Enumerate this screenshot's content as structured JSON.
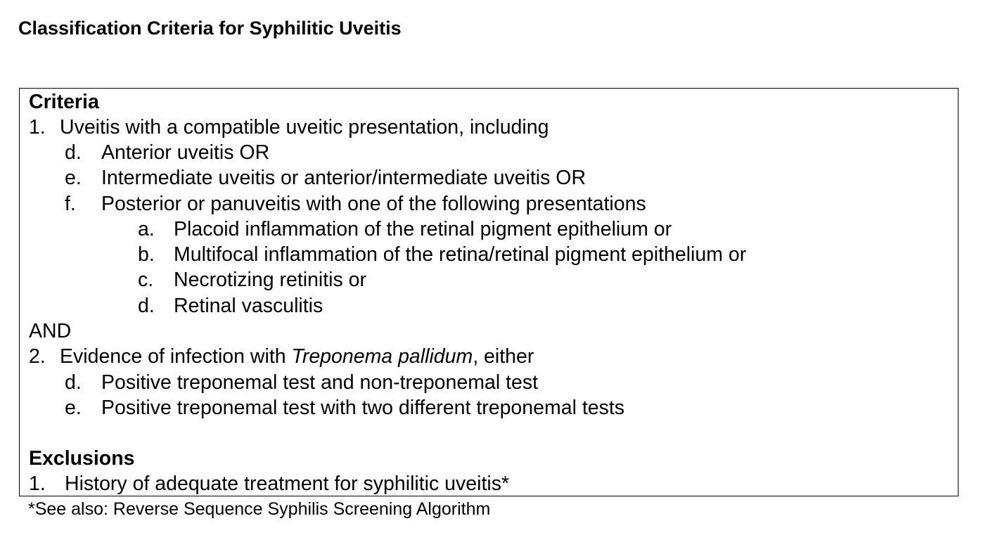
{
  "title": "Classification Criteria for Syphilitic Uveitis",
  "criteria": {
    "heading": "Criteria",
    "item1": {
      "num": "1.",
      "text": "Uveitis with a compatible uveitic presentation, including",
      "subs": [
        {
          "label": "d.",
          "text": "Anterior uveitis OR"
        },
        {
          "label": "e.",
          "text": "Intermediate uveitis or anterior/intermediate uveitis OR"
        },
        {
          "label": "f.",
          "text": "Posterior or panuveitis with one of the following presentations"
        }
      ],
      "subsubs": [
        {
          "label": "a.",
          "text": "Placoid inflammation of the retinal pigment epithelium or"
        },
        {
          "label": "b.",
          "text": "Multifocal inflammation of the retina/retinal pigment epithelium or"
        },
        {
          "label": "c.",
          "text": "Necrotizing retinitis or"
        },
        {
          "label": "d.",
          "text": "Retinal vasculitis"
        }
      ]
    },
    "connector": "AND",
    "item2": {
      "num": "2.",
      "text_before": "Evidence of infection with ",
      "text_italic": "Treponema pallidum",
      "text_after": ", either",
      "subs": [
        {
          "label": "d.",
          "text": "Positive treponemal test and non-treponemal test"
        },
        {
          "label": "e.",
          "text": "Positive treponemal test with two different treponemal tests"
        }
      ]
    }
  },
  "exclusions": {
    "heading": "Exclusions",
    "items": [
      {
        "num": "1.",
        "text": "History of adequate treatment for syphilitic uveitis*"
      }
    ]
  },
  "footnote": "*See also: Reverse Sequence Syphilis Screening Algorithm"
}
